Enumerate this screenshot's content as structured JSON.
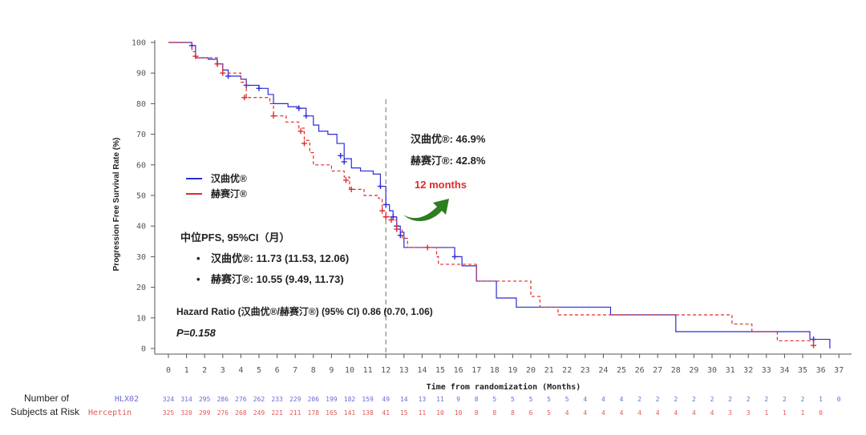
{
  "chart_data": {
    "type": "line",
    "ylabel": "Progression Free Survival Rate (%)",
    "xlabel": "Time from randomization (Months)",
    "xlim": [
      0,
      37
    ],
    "ylim": [
      0,
      100
    ],
    "x_ticks": [
      0,
      1,
      2,
      3,
      4,
      5,
      6,
      7,
      8,
      9,
      10,
      11,
      12,
      13,
      14,
      15,
      16,
      17,
      18,
      19,
      20,
      21,
      22,
      23,
      24,
      25,
      26,
      27,
      28,
      29,
      30,
      31,
      32,
      33,
      34,
      35,
      36,
      37
    ],
    "y_ticks": [
      0,
      10,
      20,
      30,
      40,
      50,
      60,
      70,
      80,
      90,
      100
    ],
    "grid": false,
    "legend_position": "left-middle",
    "series": [
      {
        "name": "汉曲优",
        "color": "#2b2bd6",
        "style": "solid",
        "points": [
          [
            0,
            100
          ],
          [
            1.3,
            99
          ],
          [
            1.5,
            95
          ],
          [
            2.2,
            94.5
          ],
          [
            2.7,
            93
          ],
          [
            3,
            91
          ],
          [
            3.3,
            89
          ],
          [
            4,
            88
          ],
          [
            4.3,
            86
          ],
          [
            5,
            85
          ],
          [
            5.5,
            83
          ],
          [
            5.8,
            80
          ],
          [
            6.6,
            79
          ],
          [
            7.2,
            78.5
          ],
          [
            7.6,
            76
          ],
          [
            8,
            73
          ],
          [
            8.3,
            71
          ],
          [
            8.8,
            70
          ],
          [
            9.3,
            67
          ],
          [
            9.7,
            62
          ],
          [
            10.1,
            59
          ],
          [
            10.6,
            58
          ],
          [
            11.3,
            57
          ],
          [
            11.7,
            53
          ],
          [
            12.0,
            47
          ],
          [
            12.2,
            45
          ],
          [
            12.4,
            43
          ],
          [
            12.6,
            40
          ],
          [
            12.8,
            38
          ],
          [
            13.0,
            33
          ],
          [
            13.5,
            33
          ],
          [
            15.5,
            33
          ],
          [
            15.8,
            30
          ],
          [
            16.2,
            27
          ],
          [
            16.9,
            27
          ],
          [
            17.0,
            22
          ],
          [
            18.0,
            22
          ],
          [
            18.1,
            16.5
          ],
          [
            19.1,
            16.5
          ],
          [
            19.2,
            13.5
          ],
          [
            24.3,
            13.5
          ],
          [
            24.4,
            11
          ],
          [
            27.9,
            11
          ],
          [
            28.0,
            5.5
          ],
          [
            35.3,
            5.5
          ],
          [
            35.4,
            3
          ],
          [
            36.4,
            3
          ],
          [
            36.5,
            0
          ]
        ],
        "censor_points": [
          [
            1.3,
            99
          ],
          [
            2.7,
            93
          ],
          [
            3.3,
            89
          ],
          [
            4.3,
            86
          ],
          [
            5.0,
            85
          ],
          [
            7.2,
            78.5
          ],
          [
            7.6,
            76
          ],
          [
            9.5,
            63
          ],
          [
            9.7,
            61
          ],
          [
            11.7,
            53
          ],
          [
            12.0,
            47
          ],
          [
            12.4,
            43
          ],
          [
            12.6,
            40
          ],
          [
            12.8,
            37
          ],
          [
            15.8,
            30
          ],
          [
            35.6,
            3
          ]
        ],
        "at_risk": [
          "324",
          "314",
          "295",
          "286",
          "276",
          "262",
          "233",
          "229",
          "206",
          "199",
          "182",
          "159",
          "49",
          "14",
          "13",
          "11",
          "9",
          "8",
          "5",
          "5",
          "5",
          "5",
          "5",
          "4",
          "4",
          "4",
          "2",
          "2",
          "2",
          "2",
          "2",
          "2",
          "2",
          "2",
          "2",
          "2",
          "1",
          "0"
        ]
      },
      {
        "name": "赫赛汀",
        "color": "#e02a2a",
        "style": "dashed",
        "points": [
          [
            0,
            100
          ],
          [
            1.3,
            97
          ],
          [
            1.5,
            95
          ],
          [
            2.7,
            93
          ],
          [
            3.0,
            90
          ],
          [
            4.0,
            87
          ],
          [
            4.3,
            82
          ],
          [
            5.6,
            80
          ],
          [
            5.8,
            76
          ],
          [
            6.5,
            74
          ],
          [
            7.2,
            72
          ],
          [
            7.5,
            68
          ],
          [
            7.8,
            64
          ],
          [
            8.0,
            60
          ],
          [
            9.0,
            58
          ],
          [
            9.7,
            56
          ],
          [
            10.0,
            52
          ],
          [
            10.8,
            50
          ],
          [
            11.6,
            49
          ],
          [
            11.8,
            45
          ],
          [
            12.0,
            43
          ],
          [
            12.3,
            42
          ],
          [
            12.6,
            39
          ],
          [
            12.9,
            36
          ],
          [
            13.2,
            33
          ],
          [
            14.0,
            33
          ],
          [
            14.8,
            30
          ],
          [
            14.9,
            27.5
          ],
          [
            16.9,
            27.5
          ],
          [
            17.0,
            22
          ],
          [
            19.9,
            22
          ],
          [
            20.0,
            17
          ],
          [
            20.4,
            17
          ],
          [
            20.5,
            13.5
          ],
          [
            21.4,
            13.5
          ],
          [
            21.5,
            11
          ],
          [
            31.0,
            11
          ],
          [
            31.1,
            8
          ],
          [
            32.1,
            8
          ],
          [
            32.2,
            5.5
          ],
          [
            33.5,
            5.5
          ],
          [
            33.6,
            2.5
          ],
          [
            35.5,
            2.5
          ],
          [
            35.6,
            1
          ]
        ],
        "censor_points": [
          [
            1.5,
            95.5
          ],
          [
            2.7,
            93
          ],
          [
            3.0,
            90
          ],
          [
            4.2,
            82
          ],
          [
            5.8,
            76
          ],
          [
            7.3,
            71
          ],
          [
            7.5,
            67
          ],
          [
            9.8,
            55
          ],
          [
            10.1,
            52
          ],
          [
            11.8,
            45
          ],
          [
            12.0,
            43
          ],
          [
            12.3,
            42
          ],
          [
            12.6,
            39
          ],
          [
            14.3,
            33
          ],
          [
            35.6,
            1
          ]
        ],
        "at_risk": [
          "325",
          "320",
          "299",
          "276",
          "268",
          "249",
          "221",
          "211",
          "178",
          "165",
          "141",
          "138",
          "41",
          "15",
          "11",
          "10",
          "10",
          "8",
          "8",
          "8",
          "6",
          "5",
          "4",
          "4",
          "4",
          "4",
          "4",
          "4",
          "4",
          "4",
          "4",
          "3",
          "3",
          "1",
          "1",
          "1",
          "0",
          ""
        ]
      }
    ],
    "reference_line": {
      "x": 12,
      "style": "dashed",
      "color": "#888888"
    }
  },
  "annotations": {
    "rate_blue": "汉曲优®: 46.9%",
    "rate_red": "赫赛汀®: 42.8%",
    "months_label": "12 months",
    "months_color": "#e02a2a",
    "arrow_color": "#2e7d1f",
    "median_title": "中位PFS, 95%CI（月）",
    "median_blue": "汉曲优®: 11.73 (11.53, 12.06)",
    "median_red": "赫赛汀®: 10.55 (9.49, 11.73)",
    "bullet": "•",
    "hazard": "Hazard Ratio (汉曲优®/赫赛汀®) (95% CI) 0.86 (0.70, 1.06)",
    "pvalue": "P=0.158",
    "legend_blue": "汉曲优®",
    "legend_red": "赫赛汀®"
  },
  "risk_table": {
    "label_line1": "Number of",
    "label_line2": "Subjects at Risk",
    "row1_name": "HLX02",
    "row2_name": "Herceptin"
  }
}
